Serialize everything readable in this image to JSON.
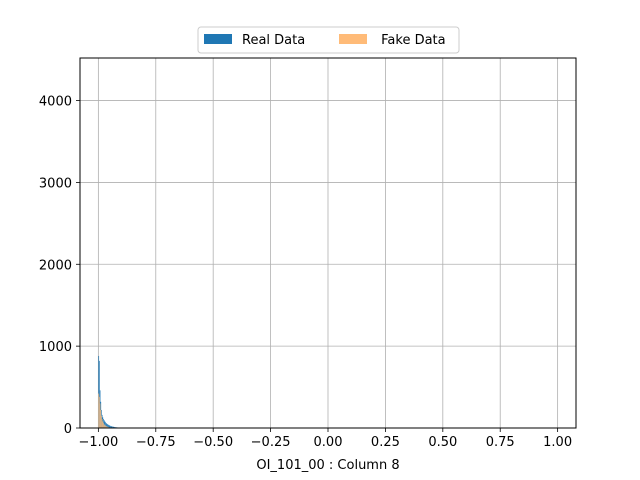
{
  "chart_data": {
    "type": "bar",
    "xlabel": "OI_101_00 : Column 8",
    "ylabel": "",
    "xlim": [
      -1.08,
      1.08
    ],
    "ylim": [
      0,
      4520
    ],
    "grid": true,
    "xticks": [
      -1.0,
      -0.75,
      -0.5,
      -0.25,
      0.0,
      0.25,
      0.5,
      0.75,
      1.0
    ],
    "xtick_labels": [
      "−1.00",
      "−0.75",
      "−0.50",
      "−0.25",
      "0.00",
      "0.25",
      "0.50",
      "0.75",
      "1.00"
    ],
    "yticks": [
      0,
      1000,
      2000,
      3000,
      4000
    ],
    "ytick_labels": [
      "0",
      "1000",
      "2000",
      "3000",
      "4000"
    ],
    "legend": {
      "placement": "top-center",
      "ncol": 2
    },
    "bin_width": 0.003,
    "series": [
      {
        "name": "Real Data",
        "color": "#1f77b4",
        "bins_start": [
          -1.0,
          -0.997,
          -0.994,
          -0.991,
          -0.988,
          -0.985,
          -0.982,
          -0.979,
          -0.976,
          -0.973,
          -0.97,
          -0.967,
          -0.964,
          -0.961,
          -0.958,
          -0.955,
          -0.952,
          -0.949,
          -0.946,
          -0.943,
          -0.94,
          -0.937,
          -0.934,
          -0.931,
          -0.928,
          -0.925,
          -0.922,
          -0.919,
          -0.916,
          -0.913,
          -0.91,
          -0.907,
          -0.904
        ],
        "values": [
          880,
          820,
          460,
          320,
          220,
          160,
          130,
          110,
          95,
          80,
          70,
          60,
          50,
          45,
          40,
          35,
          30,
          26,
          22,
          20,
          18,
          16,
          14,
          12,
          10,
          9,
          8,
          7,
          6,
          5,
          4,
          3,
          2
        ]
      },
      {
        "name": " Fake Data",
        "color": "#ffbb78",
        "alpha": 0.85,
        "bins_start": [
          -1.0,
          -0.997,
          -0.994,
          -0.991,
          -0.988,
          -0.985,
          -0.982,
          -0.979,
          -0.976,
          -0.973,
          -0.97,
          -0.967,
          -0.964,
          -0.961,
          -0.958,
          -0.955,
          -0.952,
          -0.949,
          -0.946,
          -0.943
        ],
        "values": [
          420,
          380,
          300,
          220,
          150,
          110,
          80,
          60,
          45,
          35,
          28,
          22,
          18,
          14,
          10,
          8,
          6,
          4,
          3,
          2
        ]
      }
    ]
  }
}
